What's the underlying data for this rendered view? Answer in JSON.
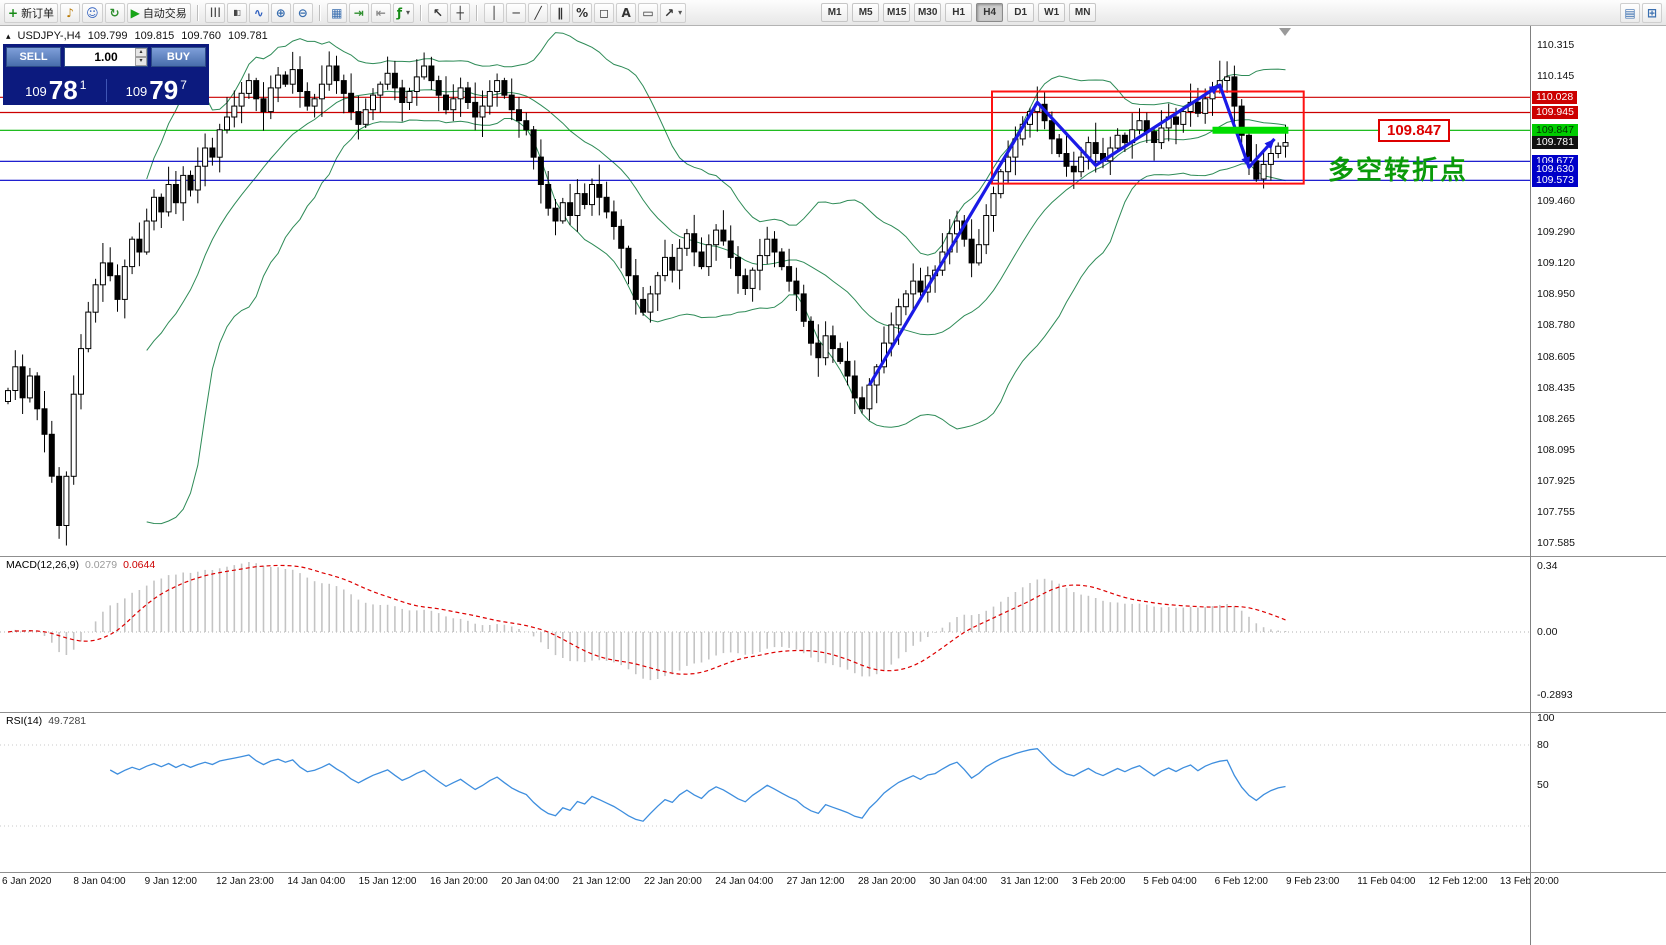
{
  "icon_glyphs": {
    "new-order-icon": [
      "+",
      "#168a16"
    ],
    "sound-icon": [
      "♪",
      "#b87800"
    ],
    "profile-icon": [
      "☺",
      "#2f5fbf"
    ],
    "refresh-icon": [
      "↻",
      "#2f8f2f"
    ],
    "play-icon": [
      "▶",
      "#17a417"
    ],
    "bars-icon": [
      "┃┃┃",
      "#444444"
    ],
    "candles-icon": [
      "▮▯",
      "#444444"
    ],
    "linechart-icon": [
      "∿",
      "#2f5fbf"
    ],
    "zoom-in-icon": [
      "⊕",
      "#3a6fb0"
    ],
    "zoom-out-icon": [
      "⊖",
      "#3a6fb0"
    ],
    "tile-icon": [
      "▦",
      "#3a6fb0"
    ],
    "autoscroll-icon": [
      "⇥",
      "#2f8f2f"
    ],
    "shift-icon": [
      "⇤",
      "#888888"
    ],
    "indicators-icon": [
      "ƒ",
      "#168a16"
    ],
    "cursor-icon": [
      "↖",
      "#333333"
    ],
    "crosshair-icon": [
      "┼",
      "#333333"
    ],
    "vline-icon": [
      "│",
      "#333333"
    ],
    "hline-icon": [
      "─",
      "#333333"
    ],
    "trendline-icon": [
      "╱",
      "#333333"
    ],
    "channel-icon": [
      "∥",
      "#333333"
    ],
    "fibo-icon": [
      "%",
      "#333333"
    ],
    "shapes-icon": [
      "◻",
      "#333333"
    ],
    "text-icon": [
      "A",
      "#333333"
    ],
    "label-icon": [
      "▭",
      "#333333"
    ],
    "arrows-icon": [
      "↗",
      "#333333"
    ],
    "dock-icon": [
      "▤",
      "#3a6fb0"
    ],
    "grid-icon": [
      "⊞",
      "#3a6fb0"
    ],
    "collapse-icon": [
      "▴",
      "#111111"
    ],
    "spin-up": [
      "▴",
      "#444444"
    ],
    "spin-down": [
      "▾",
      "#444444"
    ]
  },
  "toolbar": {
    "buttons": [
      {
        "name": "new-order-button",
        "icon": "new-order-icon",
        "label": "新订单"
      },
      {
        "name": "alerts-button",
        "icon": "sound-icon"
      },
      {
        "name": "profiles-button",
        "icon": "profile-icon"
      },
      {
        "name": "refresh-button",
        "icon": "refresh-icon"
      },
      {
        "name": "autotrading-button",
        "icon": "play-icon",
        "label": "自动交易"
      },
      {
        "sep": true
      },
      {
        "name": "bar-chart-button",
        "icon": "bars-icon"
      },
      {
        "name": "candle-chart-button",
        "icon": "candles-icon"
      },
      {
        "name": "line-chart-button",
        "icon": "linechart-icon"
      },
      {
        "name": "zoom-in-button",
        "icon": "zoom-in-icon"
      },
      {
        "name": "zoom-out-button",
        "icon": "zoom-out-icon"
      },
      {
        "sep": true
      },
      {
        "name": "tile-windows-button",
        "icon": "tile-icon"
      },
      {
        "name": "auto-scroll-button",
        "icon": "autoscroll-icon"
      },
      {
        "name": "chart-shift-button",
        "icon": "shift-icon"
      },
      {
        "name": "indicators-button",
        "icon": "indicators-icon",
        "dropdown": true
      },
      {
        "sep": true
      },
      {
        "name": "cursor-button",
        "icon": "cursor-icon"
      },
      {
        "name": "crosshair-button",
        "icon": "crosshair-icon"
      },
      {
        "sep": true
      },
      {
        "name": "vertical-line-button",
        "icon": "vline-icon"
      },
      {
        "name": "horizontal-line-button",
        "icon": "hline-icon"
      },
      {
        "name": "trendline-button",
        "icon": "trendline-icon"
      },
      {
        "name": "channel-button",
        "icon": "channel-icon"
      },
      {
        "name": "fibonacci-button",
        "icon": "fibo-icon"
      },
      {
        "name": "shapes-button",
        "icon": "shapes-icon"
      },
      {
        "name": "text-button",
        "icon": "text-icon"
      },
      {
        "name": "label-button",
        "icon": "label-icon"
      },
      {
        "name": "arrows-button",
        "icon": "arrows-icon",
        "dropdown": true
      },
      {
        "spacer": true
      }
    ],
    "timeframes": [
      "M1",
      "M5",
      "M15",
      "M30",
      "H1",
      "H4",
      "D1",
      "W1",
      "MN"
    ],
    "active_timeframe": "H4",
    "right_buttons": [
      {
        "name": "dock-button",
        "icon": "dock-icon"
      },
      {
        "name": "new-window-button",
        "icon": "grid-icon"
      }
    ]
  },
  "chart": {
    "symbol_info": {
      "symbol": "USDJPY-,H4",
      "open": "109.799",
      "high": "109.815",
      "low": "109.760",
      "close": "109.781"
    },
    "trade_panel": {
      "sell_label": "SELL",
      "buy_label": "BUY",
      "volume": "1.00",
      "sell_price": {
        "big": "109",
        "pips": "78",
        "pt": "1"
      },
      "buy_price": {
        "big": "109",
        "pips": "79",
        "pt": "7"
      }
    },
    "annotations": {
      "price_callout": "109.847",
      "note": "多空转折点"
    }
  },
  "chart_data": {
    "type": "candlestick",
    "symbol": "USDJPY",
    "timeframe": "H4",
    "closes": [
      108.42,
      108.55,
      108.38,
      108.5,
      108.32,
      108.18,
      107.95,
      107.68,
      107.95,
      108.4,
      108.65,
      108.85,
      109.0,
      109.12,
      109.05,
      108.92,
      109.1,
      109.25,
      109.18,
      109.35,
      109.48,
      109.4,
      109.55,
      109.45,
      109.6,
      109.52,
      109.65,
      109.75,
      109.7,
      109.85,
      109.92,
      109.98,
      110.05,
      110.12,
      110.02,
      109.95,
      110.08,
      110.15,
      110.1,
      110.18,
      110.06,
      109.98,
      110.02,
      110.1,
      110.2,
      110.12,
      110.05,
      109.95,
      109.88,
      109.96,
      110.04,
      110.1,
      110.16,
      110.08,
      110.0,
      110.06,
      110.14,
      110.2,
      110.12,
      110.04,
      109.96,
      110.02,
      110.08,
      110.0,
      109.92,
      109.98,
      110.06,
      110.12,
      110.04,
      109.96,
      109.9,
      109.85,
      109.7,
      109.55,
      109.42,
      109.35,
      109.45,
      109.38,
      109.5,
      109.44,
      109.55,
      109.48,
      109.4,
      109.32,
      109.2,
      109.05,
      108.92,
      108.85,
      108.95,
      109.05,
      109.15,
      109.08,
      109.2,
      109.28,
      109.18,
      109.1,
      109.22,
      109.3,
      109.24,
      109.15,
      109.05,
      108.98,
      109.08,
      109.16,
      109.25,
      109.18,
      109.1,
      109.02,
      108.95,
      108.8,
      108.68,
      108.6,
      108.72,
      108.65,
      108.58,
      108.5,
      108.38,
      108.32,
      108.45,
      108.55,
      108.68,
      108.78,
      108.88,
      108.95,
      109.02,
      108.96,
      109.05,
      109.08,
      109.18,
      109.28,
      109.35,
      109.25,
      109.12,
      109.22,
      109.38,
      109.5,
      109.62,
      109.7,
      109.8,
      109.88,
      109.95,
      109.99,
      109.9,
      109.8,
      109.72,
      109.65,
      109.62,
      109.7,
      109.78,
      109.72,
      109.68,
      109.75,
      109.82,
      109.78,
      109.85,
      109.9,
      109.84,
      109.78,
      109.86,
      109.92,
      109.88,
      109.95,
      110.0,
      109.94,
      110.02,
      110.08,
      110.12,
      110.14,
      109.98,
      109.82,
      109.68,
      109.58,
      109.66,
      109.72,
      109.76,
      109.78
    ],
    "y_axis": {
      "min": 107.585,
      "max": 110.315,
      "ticks": [
        "110.315",
        "110.145",
        "109.460",
        "109.290",
        "109.120",
        "108.950",
        "108.780",
        "108.605",
        "108.435",
        "108.265",
        "108.095",
        "107.925",
        "107.755",
        "107.585"
      ]
    },
    "x_axis": {
      "labels": [
        "6 Jan 2020",
        "8 Jan 04:00",
        "9 Jan 12:00",
        "12 Jan 23:00",
        "14 Jan 04:00",
        "15 Jan 12:00",
        "16 Jan 20:00",
        "20 Jan 04:00",
        "21 Jan 12:00",
        "22 Jan 20:00",
        "24 Jan 04:00",
        "27 Jan 12:00",
        "28 Jan 20:00",
        "30 Jan 04:00",
        "31 Jan 12:00",
        "3 Feb 20:00",
        "5 Feb 04:00",
        "6 Feb 12:00",
        "9 Feb 23:00",
        "11 Feb 04:00",
        "12 Feb 12:00",
        "13 Feb 20:00"
      ]
    },
    "indicators": {
      "bollinger": {
        "period": 20,
        "deviation": 2,
        "color": "#2e8b57"
      },
      "macd": {
        "label": "MACD(12,26,9)",
        "main_str": "0.0279",
        "signal_str": "0.0644",
        "axis": [
          "0.34",
          "0.00",
          "-0.2893"
        ]
      },
      "rsi": {
        "label": "RSI(14)",
        "value_str": "49.7281",
        "axis": [
          "100",
          "80",
          "50"
        ],
        "levels": [
          80,
          20
        ]
      }
    },
    "levels": {
      "lines": [
        {
          "value": 110.028,
          "color": "#cc0000"
        },
        {
          "value": 109.945,
          "color": "#cc0000"
        },
        {
          "value": 109.847,
          "color": "#00b300"
        },
        {
          "value": 109.677,
          "color": "#0000c8"
        },
        {
          "value": 109.573,
          "color": "#0000c8"
        }
      ],
      "badges": [
        {
          "value": "110.028",
          "bg": "#cc0000",
          "fg": "#ffffff"
        },
        {
          "value": "109.945",
          "bg": "#cc0000",
          "fg": "#ffffff"
        },
        {
          "value": "109.847",
          "bg": "#00cc00",
          "fg": "#003300"
        },
        {
          "value": "109.781",
          "bg": "#111111",
          "fg": "#ffffff"
        },
        {
          "value": "109.677",
          "bg": "#0000c8",
          "fg": "#ffffff"
        },
        {
          "value": "109.630",
          "bg": "#0000c8",
          "fg": "#ffffff"
        },
        {
          "value": "109.573",
          "bg": "#0000c8",
          "fg": "#ffffff"
        }
      ]
    },
    "annotations": {
      "rect": {
        "i1": 134.8,
        "i2": 177.5,
        "p1": 110.06,
        "p2": 109.555
      },
      "zigzag": [
        [
          118,
          108.45
        ],
        [
          141,
          110.0
        ],
        [
          149,
          109.655
        ],
        [
          166,
          110.095
        ],
        [
          170,
          109.645
        ],
        [
          173.5,
          109.8
        ]
      ],
      "arrow_segments": [
        2,
        3,
        4
      ],
      "hline_segment": {
        "i1": 165,
        "i2": 175.4,
        "price": 109.847
      }
    }
  }
}
